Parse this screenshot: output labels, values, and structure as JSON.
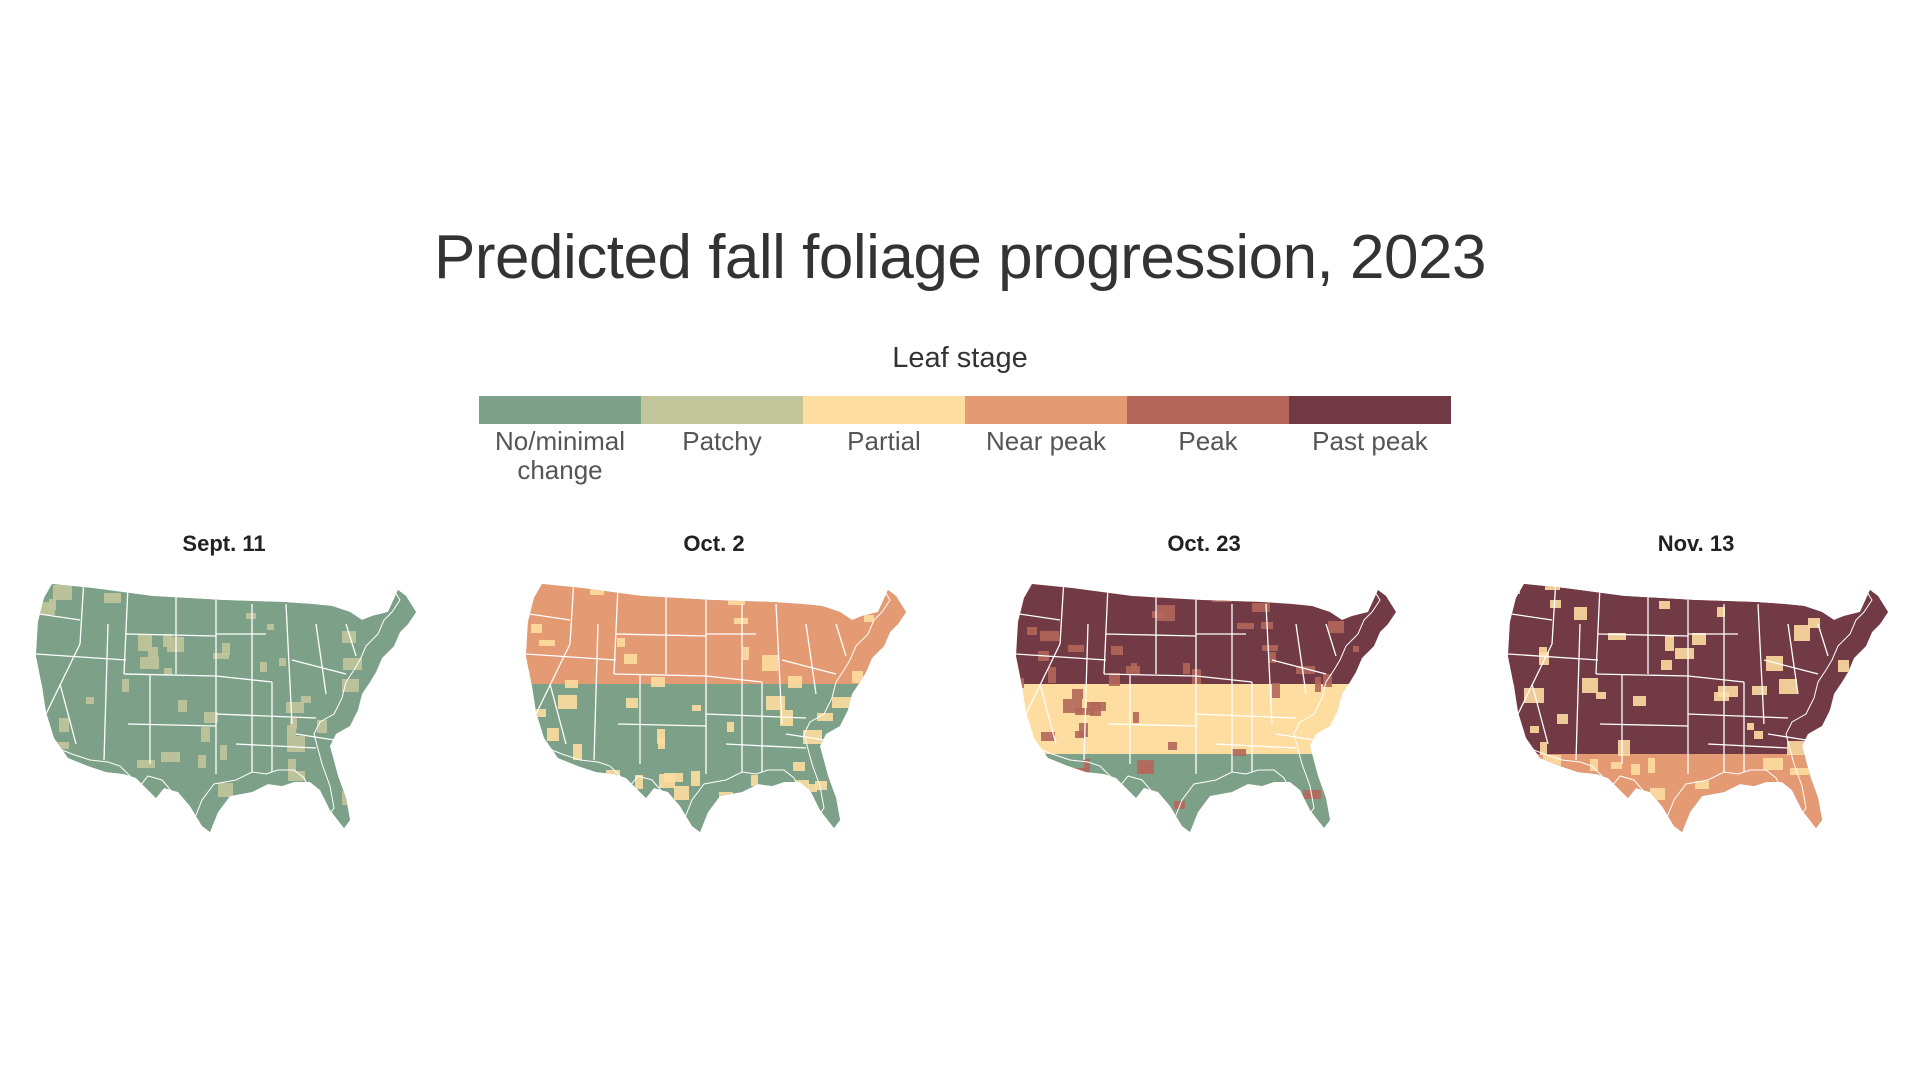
{
  "title": "Predicted fall foliage progression, 2023",
  "legend": {
    "title": "Leaf stage",
    "items": [
      {
        "label": "No/minimal change",
        "color": "#7da088"
      },
      {
        "label": "Patchy",
        "color": "#c2c49a"
      },
      {
        "label": "Partial",
        "color": "#fddda0"
      },
      {
        "label": "Near peak",
        "color": "#e49a72"
      },
      {
        "label": "Peak",
        "color": "#b4675a"
      },
      {
        "label": "Past peak",
        "color": "#713a45"
      }
    ]
  },
  "panels": [
    {
      "date": "Sept. 11",
      "base": "No/minimal change",
      "north": "No/minimal change",
      "south": "No/minimal change",
      "spots": "Patchy"
    },
    {
      "date": "Oct. 2",
      "base": "No/minimal change",
      "north": "Near peak",
      "south": "No/minimal change",
      "spots": "Partial"
    },
    {
      "date": "Oct. 23",
      "base": "Partial",
      "north": "Past peak",
      "south": "No/minimal change",
      "spots": "Peak"
    },
    {
      "date": "Nov. 13",
      "base": "Past peak",
      "north": "Past peak",
      "south": "Near peak",
      "spots": "Partial"
    }
  ]
}
